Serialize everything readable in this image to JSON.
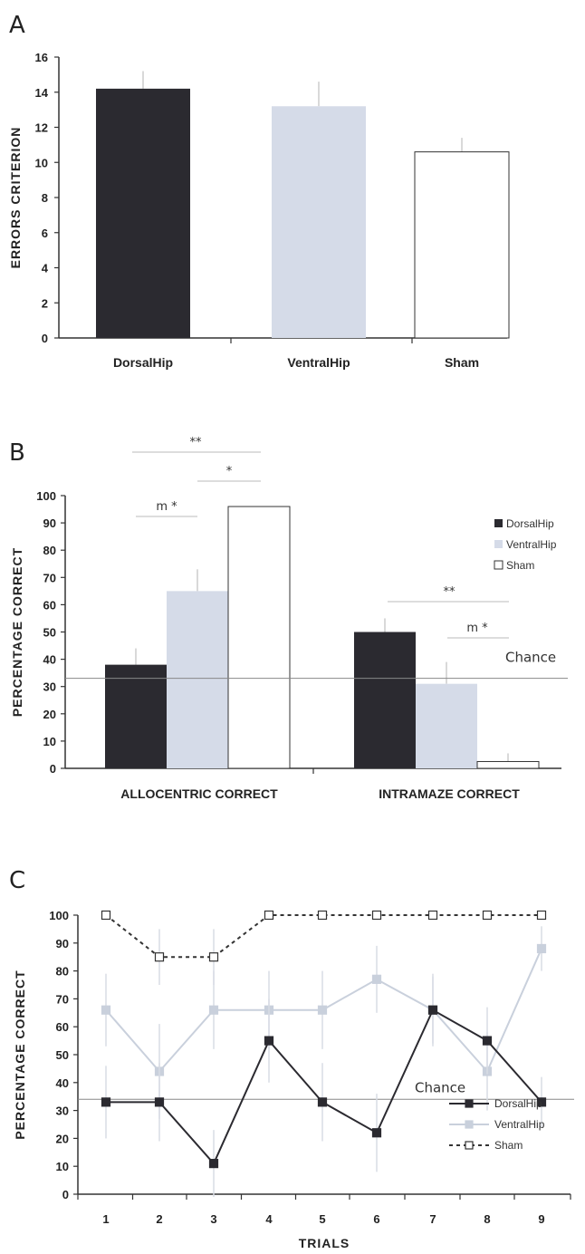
{
  "chart_data": [
    {
      "panel": "A",
      "type": "bar",
      "categories": [
        "DorsalHip",
        "VentralHip",
        "Sham"
      ],
      "values": [
        14.2,
        13.2,
        10.6
      ],
      "errors": [
        1.0,
        1.4,
        0.8
      ],
      "ylabel": "ERRORS CRITERION",
      "ylim": [
        0,
        16
      ],
      "yticks": [
        0,
        2,
        4,
        6,
        8,
        10,
        12,
        14,
        16
      ],
      "colors": [
        "#2b2a30",
        "#d5dbe8",
        "#ffffff"
      ]
    },
    {
      "panel": "B",
      "type": "bar",
      "categories": [
        "ALLOCENTRIC CORRECT",
        "INTRAMAZE CORRECT"
      ],
      "series": [
        {
          "name": "DorsalHip",
          "values": [
            38,
            50
          ],
          "errors": [
            6,
            5
          ]
        },
        {
          "name": "VentralHip",
          "values": [
            65,
            31
          ],
          "errors": [
            8,
            8
          ]
        },
        {
          "name": "Sham",
          "values": [
            96,
            2.5
          ],
          "errors": [
            0,
            3
          ]
        }
      ],
      "ylabel": "PERCENTAGE CORRECT",
      "ylim": [
        0,
        100
      ],
      "yticks": [
        0,
        10,
        20,
        30,
        40,
        50,
        60,
        70,
        80,
        90,
        100
      ],
      "chance_value": 33,
      "chance_label": "Chance",
      "legend_position": "right",
      "significance": [
        {
          "label": "**",
          "group": "ALLOCENTRIC CORRECT"
        },
        {
          "label": "*",
          "group": "ALLOCENTRIC CORRECT"
        },
        {
          "label": "m *",
          "group": "ALLOCENTRIC CORRECT"
        },
        {
          "label": "**",
          "group": "INTRAMAZE CORRECT"
        },
        {
          "label": "m *",
          "group": "INTRAMAZE CORRECT"
        }
      ],
      "colors": [
        "#2b2a30",
        "#d5dbe8",
        "#ffffff"
      ]
    },
    {
      "panel": "C",
      "type": "line",
      "x": [
        1,
        2,
        3,
        4,
        5,
        6,
        7,
        8,
        9
      ],
      "series": [
        {
          "name": "DorsalHip",
          "values": [
            33,
            33,
            11,
            55,
            33,
            22,
            66,
            55,
            33
          ],
          "errors": [
            13,
            14,
            12,
            15,
            14,
            14,
            12,
            12,
            9
          ]
        },
        {
          "name": "VentralHip",
          "values": [
            66,
            44,
            66,
            66,
            66,
            77,
            66,
            44,
            88
          ],
          "errors": [
            13,
            17,
            14,
            14,
            14,
            12,
            13,
            14,
            8
          ]
        },
        {
          "name": "Sham",
          "values": [
            100,
            85,
            85,
            100,
            100,
            100,
            100,
            100,
            100
          ],
          "errors": [
            0,
            10,
            10,
            0,
            0,
            0,
            0,
            0,
            0
          ]
        }
      ],
      "xlabel": "TRIALS",
      "ylabel": "PERCENTAGE CORRECT",
      "ylim": [
        0,
        100
      ],
      "yticks": [
        0,
        10,
        20,
        30,
        40,
        50,
        60,
        70,
        80,
        90,
        100
      ],
      "chance_value": 34,
      "chance_label": "Chance",
      "legend_position": "bottom-right",
      "colors": [
        "#2b2a30",
        "#c9d0dc",
        "#333333"
      ]
    }
  ],
  "panels": {
    "a": "A",
    "b": "B",
    "c": "C"
  }
}
